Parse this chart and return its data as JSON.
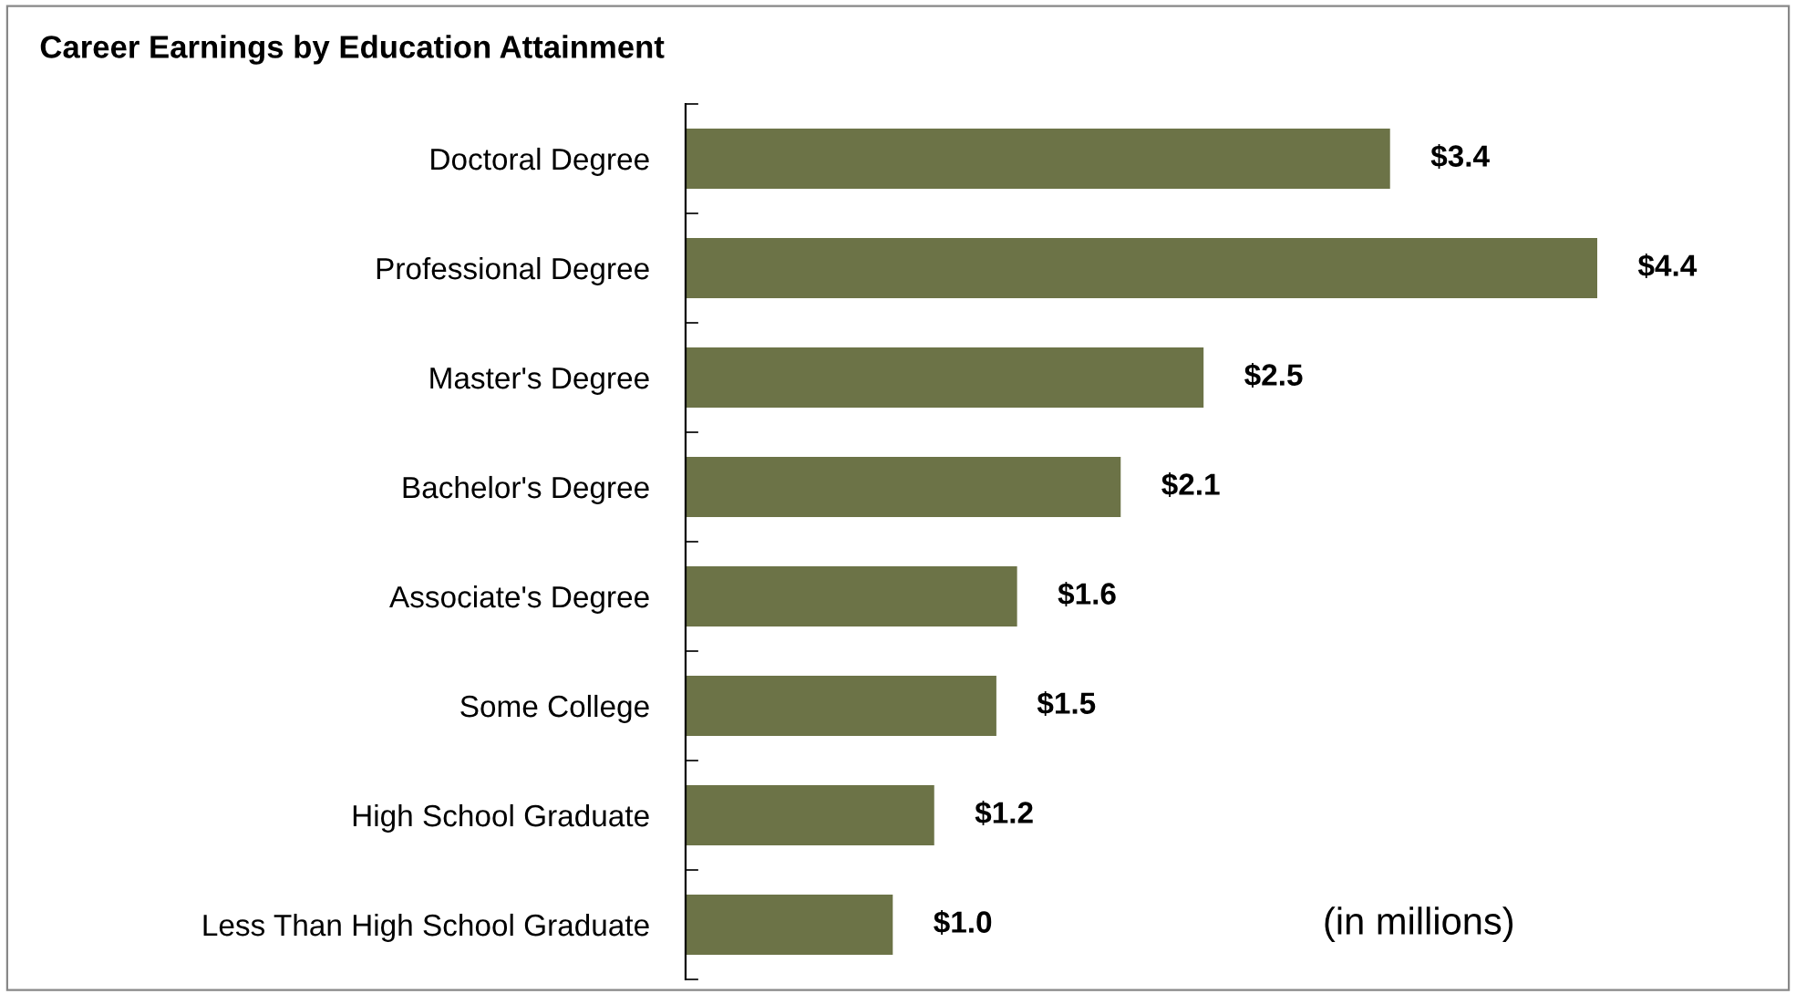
{
  "chart_data": {
    "type": "bar",
    "orientation": "horizontal",
    "title": "Career Earnings by Education Attainment",
    "categories": [
      "Doctoral Degree",
      "Professional Degree",
      "Master's Degree",
      "Bachelor's Degree",
      "Associate's Degree",
      "Some College",
      "High School Graduate",
      "Less Than High School Graduate"
    ],
    "values": [
      3.4,
      4.4,
      2.5,
      2.1,
      1.6,
      1.5,
      1.2,
      1.0
    ],
    "value_labels": [
      "$3.4",
      "$4.4",
      "$2.5",
      "$2.1",
      "$1.6",
      "$1.5",
      "$1.2",
      "$1.0"
    ],
    "color": "#6c7347",
    "tick_labels": "y",
    "grid": false,
    "annotations": [
      "(in millions)"
    ]
  }
}
